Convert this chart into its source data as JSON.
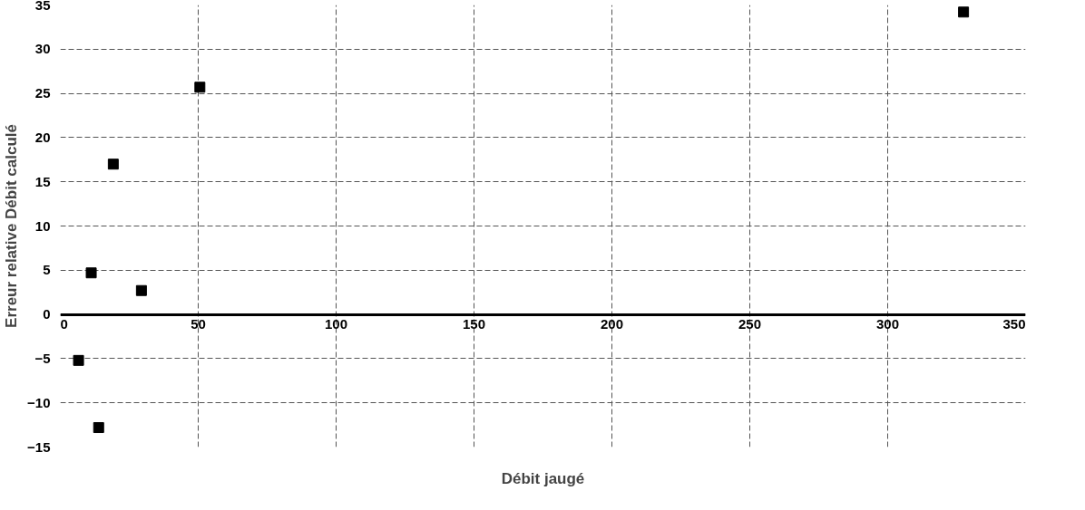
{
  "chart_data": {
    "type": "scatter",
    "xlabel": "Débit jaugé",
    "ylabel": "Erreur relative Débit calculé",
    "x": [
      6.6,
      11.2,
      13.9,
      19.2,
      29.4,
      50.6,
      327.5
    ],
    "series": [
      {
        "color": "#000000",
        "values": [
          -5.2,
          4.7,
          -12.8,
          17.0,
          2.7,
          25.7,
          34.2
        ]
      }
    ],
    "xlim": [
      0,
      350
    ],
    "xticks": [
      0,
      50,
      100,
      150,
      200,
      250,
      300,
      350
    ],
    "ylim": [
      -15,
      35
    ],
    "yticks": [
      -15,
      -10,
      -5,
      0,
      5,
      10,
      15,
      20,
      25,
      30,
      35
    ],
    "grid": true,
    "marker": "square"
  }
}
